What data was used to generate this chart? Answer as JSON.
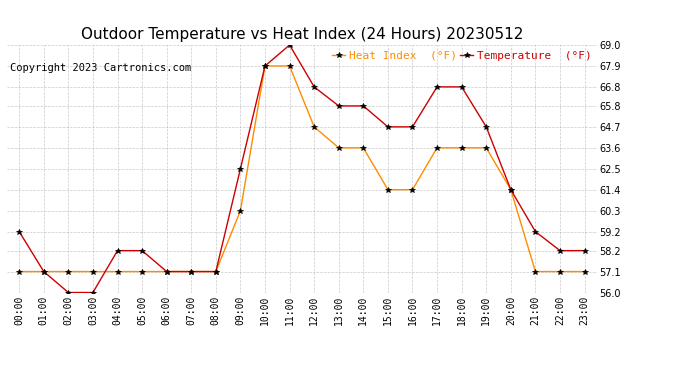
{
  "title": "Outdoor Temperature vs Heat Index (24 Hours) 20230512",
  "copyright": "Copyright 2023 Cartronics.com",
  "legend_heat": "Heat Index  (°F)",
  "legend_temp": "Temperature  (°F)",
  "hours": [
    "00:00",
    "01:00",
    "02:00",
    "03:00",
    "04:00",
    "05:00",
    "06:00",
    "07:00",
    "08:00",
    "09:00",
    "10:00",
    "11:00",
    "12:00",
    "13:00",
    "14:00",
    "15:00",
    "16:00",
    "17:00",
    "18:00",
    "19:00",
    "20:00",
    "21:00",
    "22:00",
    "23:00"
  ],
  "temperature": [
    59.2,
    57.1,
    56.0,
    56.0,
    58.2,
    58.2,
    57.1,
    57.1,
    57.1,
    62.5,
    67.9,
    69.0,
    66.8,
    65.8,
    65.8,
    64.7,
    64.7,
    66.8,
    66.8,
    64.7,
    61.4,
    59.2,
    58.2,
    58.2
  ],
  "heat_index": [
    57.1,
    57.1,
    57.1,
    57.1,
    57.1,
    57.1,
    57.1,
    57.1,
    57.1,
    60.3,
    67.9,
    67.9,
    64.7,
    63.6,
    63.6,
    61.4,
    61.4,
    63.6,
    63.6,
    63.6,
    61.4,
    57.1,
    57.1,
    57.1
  ],
  "ylim": [
    56.0,
    69.0
  ],
  "yticks": [
    56.0,
    57.1,
    58.2,
    59.2,
    60.3,
    61.4,
    62.5,
    63.6,
    64.7,
    65.8,
    66.8,
    67.9,
    69.0
  ],
  "temp_color": "#cc0000",
  "heat_color": "#ff8c00",
  "marker_color": "#000000",
  "background_color": "#ffffff",
  "grid_color": "#bbbbbb",
  "title_fontsize": 11,
  "copyright_fontsize": 7.5,
  "legend_fontsize": 8,
  "axis_fontsize": 7
}
